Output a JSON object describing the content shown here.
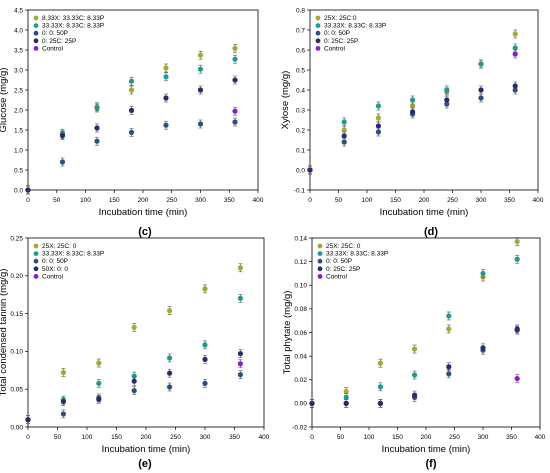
{
  "colors": {
    "olive": "#a6a832",
    "teal": "#1f9a8c",
    "steel": "#2a4f84",
    "navy": "#2b2a6a",
    "purple": "#8a1bd2"
  },
  "chart_data": [
    {
      "type": "scatter",
      "panel_label": "(c)",
      "xlabel": "Incubation time (min)",
      "ylabel": "Glucose (mg/g)",
      "xlim": [
        0,
        400
      ],
      "ylim": [
        0,
        4.5
      ],
      "xticks": [
        "0",
        "50",
        "100",
        "150",
        "200",
        "250",
        "300",
        "350",
        "400"
      ],
      "yticks": [
        "0.0",
        "0.5",
        "1.0",
        "1.5",
        "2.0",
        "2.5",
        "3.0",
        "3.5",
        "4.0",
        "4.5"
      ],
      "legend_position": "top-left",
      "series": [
        {
          "name": "8.33X: 33.33C: 8.33P",
          "color": "olive",
          "x": [
            0,
            60,
            120,
            180,
            240,
            300,
            360
          ],
          "y": [
            0,
            1.38,
            2.08,
            2.5,
            3.05,
            3.37,
            3.54
          ]
        },
        {
          "name": "33.33X: 8.33C: 8.33P",
          "color": "teal",
          "x": [
            0,
            60,
            120,
            180,
            240,
            300,
            360
          ],
          "y": [
            0,
            1.42,
            2.05,
            2.72,
            2.83,
            3.02,
            3.27
          ]
        },
        {
          "name": "0: 0: 50P",
          "color": "steel",
          "x": [
            0,
            60,
            120,
            180,
            240,
            300,
            360
          ],
          "y": [
            0,
            0.7,
            1.22,
            1.44,
            1.62,
            1.65,
            1.7
          ]
        },
        {
          "name": "0: 25C: 25P",
          "color": "navy",
          "x": [
            0,
            60,
            120,
            180,
            240,
            300,
            360
          ],
          "y": [
            0,
            1.36,
            1.55,
            1.99,
            2.3,
            2.5,
            2.75
          ]
        },
        {
          "name": "Control",
          "color": "purple",
          "x": [
            360
          ],
          "y": [
            1.97
          ]
        }
      ]
    },
    {
      "type": "scatter",
      "panel_label": "(d)",
      "xlabel": "Incubation time (min)",
      "ylabel": "Xylose (mg/g)",
      "xlim": [
        0,
        400
      ],
      "ylim": [
        -0.1,
        0.8
      ],
      "xticks": [
        "0",
        "50",
        "100",
        "150",
        "200",
        "250",
        "300",
        "350",
        "400"
      ],
      "yticks": [
        "-0.1",
        "0.0",
        "0.1",
        "0.2",
        "0.3",
        "0.4",
        "0.5",
        "0.6",
        "0.7",
        "0.8"
      ],
      "legend_position": "top-left",
      "series": [
        {
          "name": "25X: 25C:0",
          "color": "olive",
          "x": [
            0,
            60,
            120,
            180,
            240,
            300,
            360
          ],
          "y": [
            0,
            0.2,
            0.26,
            0.32,
            0.39,
            0.53,
            0.68
          ]
        },
        {
          "name": "33.33X: 8.33C: 8.33P",
          "color": "teal",
          "x": [
            0,
            60,
            120,
            180,
            240,
            300,
            360
          ],
          "y": [
            0,
            0.24,
            0.32,
            0.35,
            0.4,
            0.53,
            0.61
          ]
        },
        {
          "name": "0: 0: 50P",
          "color": "steel",
          "x": [
            0,
            60,
            120,
            180,
            240,
            300,
            360
          ],
          "y": [
            0,
            0.14,
            0.19,
            0.28,
            0.33,
            0.36,
            0.4
          ]
        },
        {
          "name": "0: 25C: 25P",
          "color": "navy",
          "x": [
            0,
            60,
            120,
            180,
            240,
            300,
            360
          ],
          "y": [
            0,
            0.17,
            0.22,
            0.29,
            0.35,
            0.4,
            0.42
          ]
        },
        {
          "name": "Control",
          "color": "purple",
          "x": [
            360
          ],
          "y": [
            0.58
          ]
        }
      ]
    },
    {
      "type": "scatter",
      "panel_label": "(e)",
      "xlabel": "Incubation time (min)",
      "ylabel": "Total condensed tannin (mg/g)",
      "xlim": [
        0,
        400
      ],
      "ylim": [
        -0.01,
        0.25
      ],
      "xticks": [
        "0",
        "50",
        "100",
        "150",
        "200",
        "250",
        "300",
        "350",
        "400"
      ],
      "yticks": [
        "0.00",
        "0.05",
        "0.10",
        "0.15",
        "0.20",
        "0.25"
      ],
      "legend_position": "top-left",
      "series": [
        {
          "name": "25X: 25C: 0",
          "color": "olive",
          "x": [
            0,
            60,
            120,
            180,
            240,
            300,
            360
          ],
          "y": [
            0,
            0.065,
            0.078,
            0.127,
            0.15,
            0.18,
            0.209
          ]
        },
        {
          "name": "33.33X: 8.33C: 8.33P",
          "color": "teal",
          "x": [
            0,
            60,
            120,
            180,
            240,
            300,
            360
          ],
          "y": [
            0,
            0.027,
            0.05,
            0.06,
            0.085,
            0.103,
            0.167
          ]
        },
        {
          "name": "0: 0: 50P",
          "color": "steel",
          "x": [
            0,
            60,
            120,
            180,
            240,
            300,
            360
          ],
          "y": [
            0,
            0.008,
            0.03,
            0.04,
            0.045,
            0.05,
            0.062
          ]
        },
        {
          "name": "50X: 0: 0",
          "color": "navy",
          "x": [
            0,
            60,
            120,
            180,
            240,
            300,
            360
          ],
          "y": [
            0,
            0.025,
            0.028,
            0.053,
            0.064,
            0.083,
            0.091
          ]
        },
        {
          "name": "Control",
          "color": "purple",
          "x": [
            360
          ],
          "y": [
            0.077
          ]
        }
      ]
    },
    {
      "type": "scatter",
      "panel_label": "(f)",
      "xlabel": "Incubation time (min)",
      "ylabel": "Total phytate (mg/g)",
      "xlim": [
        0,
        400
      ],
      "ylim": [
        -0.02,
        0.14
      ],
      "xticks": [
        "0",
        "50",
        "100",
        "150",
        "200",
        "250",
        "300",
        "350",
        "400"
      ],
      "yticks": [
        "-0.02",
        "0.00",
        "0.02",
        "0.04",
        "0.06",
        "0.08",
        "0.10",
        "0.12",
        "0.14"
      ],
      "legend_position": "top-left",
      "series": [
        {
          "name": "25X: 25C: 0",
          "color": "olive",
          "x": [
            0,
            60,
            120,
            180,
            240,
            300,
            360
          ],
          "y": [
            0,
            0.01,
            0.034,
            0.046,
            0.063,
            0.107,
            0.137
          ]
        },
        {
          "name": "33.33X: 8.33C: 8.33P",
          "color": "teal",
          "x": [
            0,
            60,
            120,
            180,
            240,
            300,
            360
          ],
          "y": [
            0,
            0.005,
            0.014,
            0.024,
            0.074,
            0.11,
            0.122
          ]
        },
        {
          "name": "0: 0: 50P",
          "color": "steel",
          "x": [
            0,
            60,
            120,
            180,
            240,
            300,
            360
          ],
          "y": [
            0,
            0.0,
            0.0,
            0.005,
            0.025,
            0.045,
            0.062
          ]
        },
        {
          "name": "0: 25C: 25P",
          "color": "navy",
          "x": [
            0,
            60,
            120,
            180,
            240,
            300,
            360
          ],
          "y": [
            0,
            0.0,
            0.0,
            0.007,
            0.031,
            0.047,
            0.063
          ]
        },
        {
          "name": "Control",
          "color": "purple",
          "x": [
            360
          ],
          "y": [
            0.021
          ]
        }
      ]
    }
  ]
}
